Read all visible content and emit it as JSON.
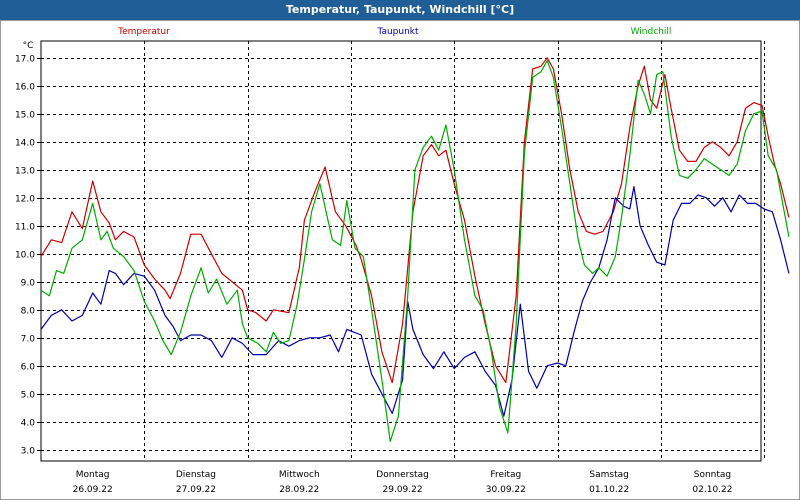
{
  "window": {
    "title": "Temperatur, Taupunkt, Windchill [°C]"
  },
  "chart_data": {
    "type": "line",
    "title": "Temperatur, Taupunkt, Windchill [°C]",
    "ylabel": "°C",
    "ylim": [
      2.6,
      17.6
    ],
    "yticks": [
      3.0,
      4.0,
      5.0,
      6.0,
      7.0,
      8.0,
      9.0,
      10.0,
      11.0,
      12.0,
      13.0,
      14.0,
      15.0,
      16.0,
      17.0
    ],
    "ytick_labels": [
      "3.0",
      "4.0",
      "5.0",
      "6.0",
      "7.0",
      "8.0",
      "9.0",
      "10.0",
      "11.0",
      "12.0",
      "13.0",
      "14.0",
      "15.0",
      "16.0",
      "17.0"
    ],
    "xlim": [
      0,
      7.1
    ],
    "grid": true,
    "legend_position": "top",
    "day_labels": [
      {
        "day": "Montag",
        "date": "26.09.22"
      },
      {
        "day": "Dienstag",
        "date": "27.09.22"
      },
      {
        "day": "Mittwoch",
        "date": "28.09.22"
      },
      {
        "day": "Donnerstag",
        "date": "29.09.22"
      },
      {
        "day": "Freitag",
        "date": "30.09.22"
      },
      {
        "day": "Samstag",
        "date": "01.10.22"
      },
      {
        "day": "Sonntag",
        "date": "02.10.22"
      }
    ],
    "series": [
      {
        "name": "Temperatur",
        "color": "#cc0000",
        "points": [
          [
            0.0,
            9.9
          ],
          [
            0.1,
            10.5
          ],
          [
            0.2,
            10.4
          ],
          [
            0.3,
            11.5
          ],
          [
            0.4,
            10.9
          ],
          [
            0.5,
            12.6
          ],
          [
            0.58,
            11.5
          ],
          [
            0.66,
            11.1
          ],
          [
            0.72,
            10.5
          ],
          [
            0.8,
            10.8
          ],
          [
            0.9,
            10.6
          ],
          [
            1.0,
            9.6
          ],
          [
            1.1,
            9.1
          ],
          [
            1.2,
            8.7
          ],
          [
            1.25,
            8.4
          ],
          [
            1.35,
            9.3
          ],
          [
            1.45,
            10.7
          ],
          [
            1.55,
            10.7
          ],
          [
            1.65,
            10.0
          ],
          [
            1.75,
            9.3
          ],
          [
            1.85,
            9.0
          ],
          [
            1.95,
            8.7
          ],
          [
            2.0,
            8.0
          ],
          [
            2.08,
            7.9
          ],
          [
            2.18,
            7.6
          ],
          [
            2.25,
            8.0
          ],
          [
            2.4,
            7.9
          ],
          [
            2.5,
            9.5
          ],
          [
            2.55,
            11.2
          ],
          [
            2.65,
            12.2
          ],
          [
            2.75,
            13.1
          ],
          [
            2.85,
            11.5
          ],
          [
            2.95,
            11.0
          ],
          [
            3.05,
            10.3
          ],
          [
            3.1,
            9.8
          ],
          [
            3.2,
            8.5
          ],
          [
            3.3,
            6.5
          ],
          [
            3.4,
            5.4
          ],
          [
            3.5,
            7.5
          ],
          [
            3.6,
            11.5
          ],
          [
            3.7,
            13.5
          ],
          [
            3.78,
            13.9
          ],
          [
            3.85,
            13.5
          ],
          [
            3.92,
            13.7
          ],
          [
            4.0,
            12.5
          ],
          [
            4.1,
            11.2
          ],
          [
            4.2,
            9.2
          ],
          [
            4.3,
            7.5
          ],
          [
            4.4,
            6.0
          ],
          [
            4.5,
            5.4
          ],
          [
            4.6,
            8.5
          ],
          [
            4.68,
            14.0
          ],
          [
            4.76,
            16.6
          ],
          [
            4.84,
            16.7
          ],
          [
            4.9,
            17.0
          ],
          [
            4.96,
            16.6
          ],
          [
            5.04,
            15.0
          ],
          [
            5.12,
            13.0
          ],
          [
            5.2,
            11.5
          ],
          [
            5.28,
            10.8
          ],
          [
            5.36,
            10.7
          ],
          [
            5.44,
            10.8
          ],
          [
            5.54,
            11.5
          ],
          [
            5.62,
            12.5
          ],
          [
            5.7,
            14.5
          ],
          [
            5.78,
            16.0
          ],
          [
            5.84,
            16.7
          ],
          [
            5.9,
            15.5
          ],
          [
            5.96,
            15.2
          ],
          [
            6.04,
            16.4
          ],
          [
            6.1,
            15.2
          ],
          [
            6.18,
            13.7
          ],
          [
            6.26,
            13.3
          ],
          [
            6.34,
            13.3
          ],
          [
            6.42,
            13.8
          ],
          [
            6.5,
            14.0
          ],
          [
            6.58,
            13.8
          ],
          [
            6.66,
            13.5
          ],
          [
            6.74,
            14.0
          ],
          [
            6.82,
            15.2
          ],
          [
            6.9,
            15.4
          ],
          [
            6.98,
            15.3
          ],
          [
            7.04,
            14.2
          ],
          [
            7.1,
            13.2
          ],
          [
            7.16,
            12.5
          ],
          [
            7.24,
            11.3
          ]
        ]
      },
      {
        "name": "Taupunkt",
        "color": "#0000aa",
        "points": [
          [
            0.0,
            7.3
          ],
          [
            0.1,
            7.8
          ],
          [
            0.2,
            8.0
          ],
          [
            0.3,
            7.6
          ],
          [
            0.4,
            7.8
          ],
          [
            0.5,
            8.6
          ],
          [
            0.58,
            8.2
          ],
          [
            0.66,
            9.4
          ],
          [
            0.72,
            9.3
          ],
          [
            0.8,
            8.9
          ],
          [
            0.9,
            9.3
          ],
          [
            1.0,
            9.2
          ],
          [
            1.1,
            8.7
          ],
          [
            1.2,
            7.8
          ],
          [
            1.28,
            7.4
          ],
          [
            1.35,
            6.9
          ],
          [
            1.45,
            7.1
          ],
          [
            1.55,
            7.1
          ],
          [
            1.65,
            6.9
          ],
          [
            1.75,
            6.3
          ],
          [
            1.85,
            7.0
          ],
          [
            1.95,
            6.8
          ],
          [
            2.05,
            6.4
          ],
          [
            2.18,
            6.4
          ],
          [
            2.3,
            6.9
          ],
          [
            2.4,
            6.7
          ],
          [
            2.5,
            6.9
          ],
          [
            2.6,
            7.0
          ],
          [
            2.7,
            7.0
          ],
          [
            2.8,
            7.1
          ],
          [
            2.88,
            6.5
          ],
          [
            2.96,
            7.3
          ],
          [
            3.1,
            7.1
          ],
          [
            3.2,
            5.7
          ],
          [
            3.3,
            5.0
          ],
          [
            3.4,
            4.3
          ],
          [
            3.5,
            5.5
          ],
          [
            3.55,
            8.3
          ],
          [
            3.6,
            7.3
          ],
          [
            3.7,
            6.4
          ],
          [
            3.8,
            5.9
          ],
          [
            3.9,
            6.5
          ],
          [
            4.0,
            5.9
          ],
          [
            4.1,
            6.3
          ],
          [
            4.2,
            6.5
          ],
          [
            4.3,
            5.8
          ],
          [
            4.4,
            5.3
          ],
          [
            4.48,
            4.2
          ],
          [
            4.56,
            5.5
          ],
          [
            4.64,
            8.2
          ],
          [
            4.72,
            5.8
          ],
          [
            4.8,
            5.2
          ],
          [
            4.9,
            6.0
          ],
          [
            5.0,
            6.1
          ],
          [
            5.08,
            6.0
          ],
          [
            5.16,
            7.2
          ],
          [
            5.24,
            8.3
          ],
          [
            5.32,
            9.0
          ],
          [
            5.4,
            9.5
          ],
          [
            5.48,
            10.5
          ],
          [
            5.56,
            12.0
          ],
          [
            5.64,
            11.7
          ],
          [
            5.7,
            11.6
          ],
          [
            5.74,
            12.4
          ],
          [
            5.8,
            11.0
          ],
          [
            5.88,
            10.3
          ],
          [
            5.96,
            9.7
          ],
          [
            6.04,
            9.6
          ],
          [
            6.12,
            11.2
          ],
          [
            6.2,
            11.8
          ],
          [
            6.28,
            11.8
          ],
          [
            6.36,
            12.1
          ],
          [
            6.44,
            12.0
          ],
          [
            6.52,
            11.7
          ],
          [
            6.6,
            12.0
          ],
          [
            6.68,
            11.5
          ],
          [
            6.76,
            12.1
          ],
          [
            6.84,
            11.8
          ],
          [
            6.92,
            11.8
          ],
          [
            7.0,
            11.6
          ],
          [
            7.08,
            11.5
          ],
          [
            7.16,
            10.5
          ],
          [
            7.24,
            9.3
          ]
        ]
      },
      {
        "name": "Windchill",
        "color": "#00aa00",
        "points": [
          [
            0.0,
            8.7
          ],
          [
            0.08,
            8.5
          ],
          [
            0.15,
            9.4
          ],
          [
            0.22,
            9.3
          ],
          [
            0.3,
            10.2
          ],
          [
            0.4,
            10.5
          ],
          [
            0.5,
            11.8
          ],
          [
            0.58,
            10.5
          ],
          [
            0.64,
            10.8
          ],
          [
            0.7,
            10.2
          ],
          [
            0.8,
            9.9
          ],
          [
            0.9,
            9.4
          ],
          [
            1.0,
            8.3
          ],
          [
            1.1,
            7.6
          ],
          [
            1.18,
            6.9
          ],
          [
            1.26,
            6.4
          ],
          [
            1.35,
            7.2
          ],
          [
            1.45,
            8.5
          ],
          [
            1.55,
            9.5
          ],
          [
            1.62,
            8.6
          ],
          [
            1.7,
            9.1
          ],
          [
            1.8,
            8.2
          ],
          [
            1.9,
            8.7
          ],
          [
            1.95,
            7.5
          ],
          [
            2.0,
            7.0
          ],
          [
            2.1,
            6.8
          ],
          [
            2.18,
            6.5
          ],
          [
            2.25,
            7.2
          ],
          [
            2.32,
            6.8
          ],
          [
            2.4,
            6.9
          ],
          [
            2.48,
            8.2
          ],
          [
            2.55,
            9.8
          ],
          [
            2.62,
            11.5
          ],
          [
            2.7,
            12.5
          ],
          [
            2.76,
            11.5
          ],
          [
            2.82,
            10.5
          ],
          [
            2.9,
            10.3
          ],
          [
            2.96,
            11.9
          ],
          [
            3.04,
            10.2
          ],
          [
            3.12,
            9.9
          ],
          [
            3.2,
            8.0
          ],
          [
            3.3,
            5.5
          ],
          [
            3.38,
            3.3
          ],
          [
            3.46,
            4.2
          ],
          [
            3.55,
            8.5
          ],
          [
            3.62,
            13.0
          ],
          [
            3.7,
            13.8
          ],
          [
            3.78,
            14.2
          ],
          [
            3.85,
            13.7
          ],
          [
            3.92,
            14.6
          ],
          [
            4.0,
            13.0
          ],
          [
            4.1,
            10.5
          ],
          [
            4.2,
            8.5
          ],
          [
            4.28,
            8.0
          ],
          [
            4.36,
            6.5
          ],
          [
            4.44,
            4.5
          ],
          [
            4.52,
            3.6
          ],
          [
            4.6,
            7.5
          ],
          [
            4.68,
            13.6
          ],
          [
            4.76,
            16.3
          ],
          [
            4.84,
            16.5
          ],
          [
            4.9,
            16.9
          ],
          [
            4.96,
            16.3
          ],
          [
            5.04,
            14.5
          ],
          [
            5.12,
            12.5
          ],
          [
            5.2,
            10.5
          ],
          [
            5.26,
            9.6
          ],
          [
            5.34,
            9.3
          ],
          [
            5.4,
            9.5
          ],
          [
            5.48,
            9.2
          ],
          [
            5.56,
            9.9
          ],
          [
            5.62,
            11.3
          ],
          [
            5.7,
            13.5
          ],
          [
            5.78,
            16.2
          ],
          [
            5.84,
            15.7
          ],
          [
            5.9,
            15.0
          ],
          [
            5.96,
            16.4
          ],
          [
            6.02,
            16.5
          ],
          [
            6.1,
            14.2
          ],
          [
            6.18,
            12.8
          ],
          [
            6.26,
            12.7
          ],
          [
            6.34,
            13.0
          ],
          [
            6.42,
            13.4
          ],
          [
            6.5,
            13.2
          ],
          [
            6.58,
            13.0
          ],
          [
            6.66,
            12.8
          ],
          [
            6.74,
            13.2
          ],
          [
            6.82,
            14.4
          ],
          [
            6.9,
            15.0
          ],
          [
            6.98,
            15.1
          ],
          [
            7.04,
            13.5
          ],
          [
            7.12,
            13.0
          ],
          [
            7.18,
            11.8
          ],
          [
            7.24,
            10.6
          ]
        ]
      }
    ]
  }
}
